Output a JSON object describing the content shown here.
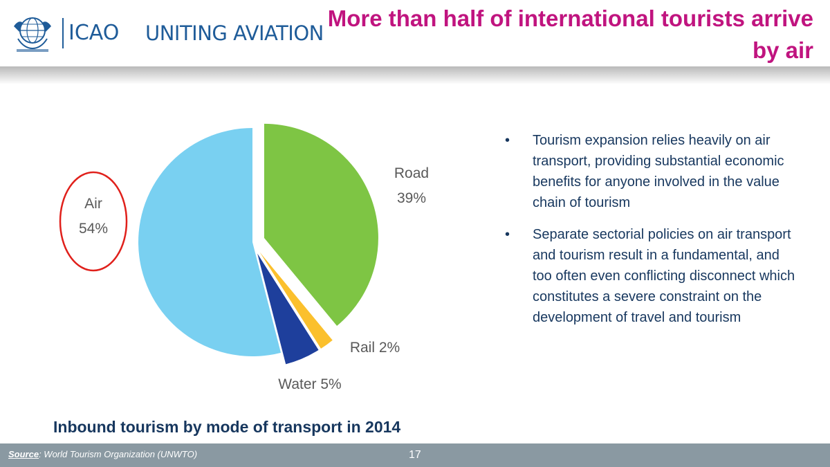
{
  "header": {
    "logo_text": "ICAO",
    "tagline": "UNITING AVIATION",
    "title": "More than half of international tourists arrive by air"
  },
  "colors": {
    "title": "#c0147f",
    "brand_blue": "#1f5c99",
    "body_text": "#17375e",
    "highlight_circle": "#e0201b",
    "footer_bg": "#8a99a2"
  },
  "chart_data": {
    "type": "pie",
    "title": "Inbound tourism by mode of transport in 2014",
    "slices": [
      {
        "label": "Road",
        "value": 39,
        "display": "39%",
        "color": "#7ec544",
        "exploded": true
      },
      {
        "label": "Rail",
        "value": 2,
        "display": "Rail 2%",
        "color": "#fbc02d",
        "exploded": true
      },
      {
        "label": "Water",
        "value": 5,
        "display": "Water 5%",
        "color": "#1e3f9c",
        "exploded": true
      },
      {
        "label": "Air",
        "value": 54,
        "display": "54%",
        "color": "#79d0f1",
        "exploded": false,
        "highlighted": true
      }
    ],
    "legend": "none"
  },
  "bullets": [
    "Tourism expansion relies heavily on air transport, providing substantial economic benefits for anyone involved in the value chain of tourism",
    "Separate sectorial policies on air transport and tourism result in a fundamental, and too often even conflicting disconnect which constitutes a severe constraint on the development of travel and tourism"
  ],
  "bullet_marker": "•",
  "footer": {
    "source_label": "Source",
    "source_text": ": World Tourism Organization (UNWTO)",
    "page_number": "17"
  }
}
